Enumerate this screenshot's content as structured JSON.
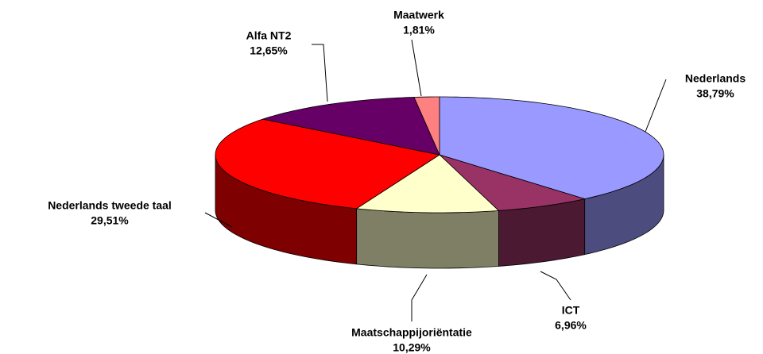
{
  "chart_data": {
    "type": "pie3d",
    "categories": [
      "Nederlands",
      "ICT",
      "Maatschappijoriëntatie",
      "Nederlands tweede taal",
      "Alfa NT2",
      "Maatwerk"
    ],
    "values": [
      38.79,
      6.96,
      10.29,
      29.51,
      12.65,
      1.81
    ],
    "value_labels": [
      "38,79%",
      "6,96%",
      "10,29%",
      "29,51%",
      "12,65%",
      "1,81%"
    ],
    "colors": [
      "#9999ff",
      "#993366",
      "#ffffcc",
      "#ff0000",
      "#660066",
      "#ff8080"
    ]
  }
}
